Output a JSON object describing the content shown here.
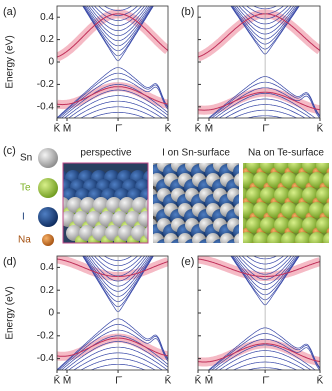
{
  "panels": [
    {
      "label": "(a)"
    },
    {
      "label": "(b)"
    },
    {
      "label": "(d)"
    },
    {
      "label": "(e)"
    }
  ],
  "y_axis_label": "Energy (eV)",
  "ylim": [
    -0.5,
    0.5
  ],
  "yticks": [
    0.4,
    0.2,
    0,
    -0.2,
    -0.4
  ],
  "k_points": [
    "K̄",
    "M̄",
    "Γ̄",
    "K̄"
  ],
  "structure": {
    "label": "(c)",
    "elements": [
      "Sn",
      "Te",
      "I",
      "Na"
    ],
    "views": [
      "perspective",
      "I on Sn-surface",
      "Na on Te-surface"
    ]
  }
}
